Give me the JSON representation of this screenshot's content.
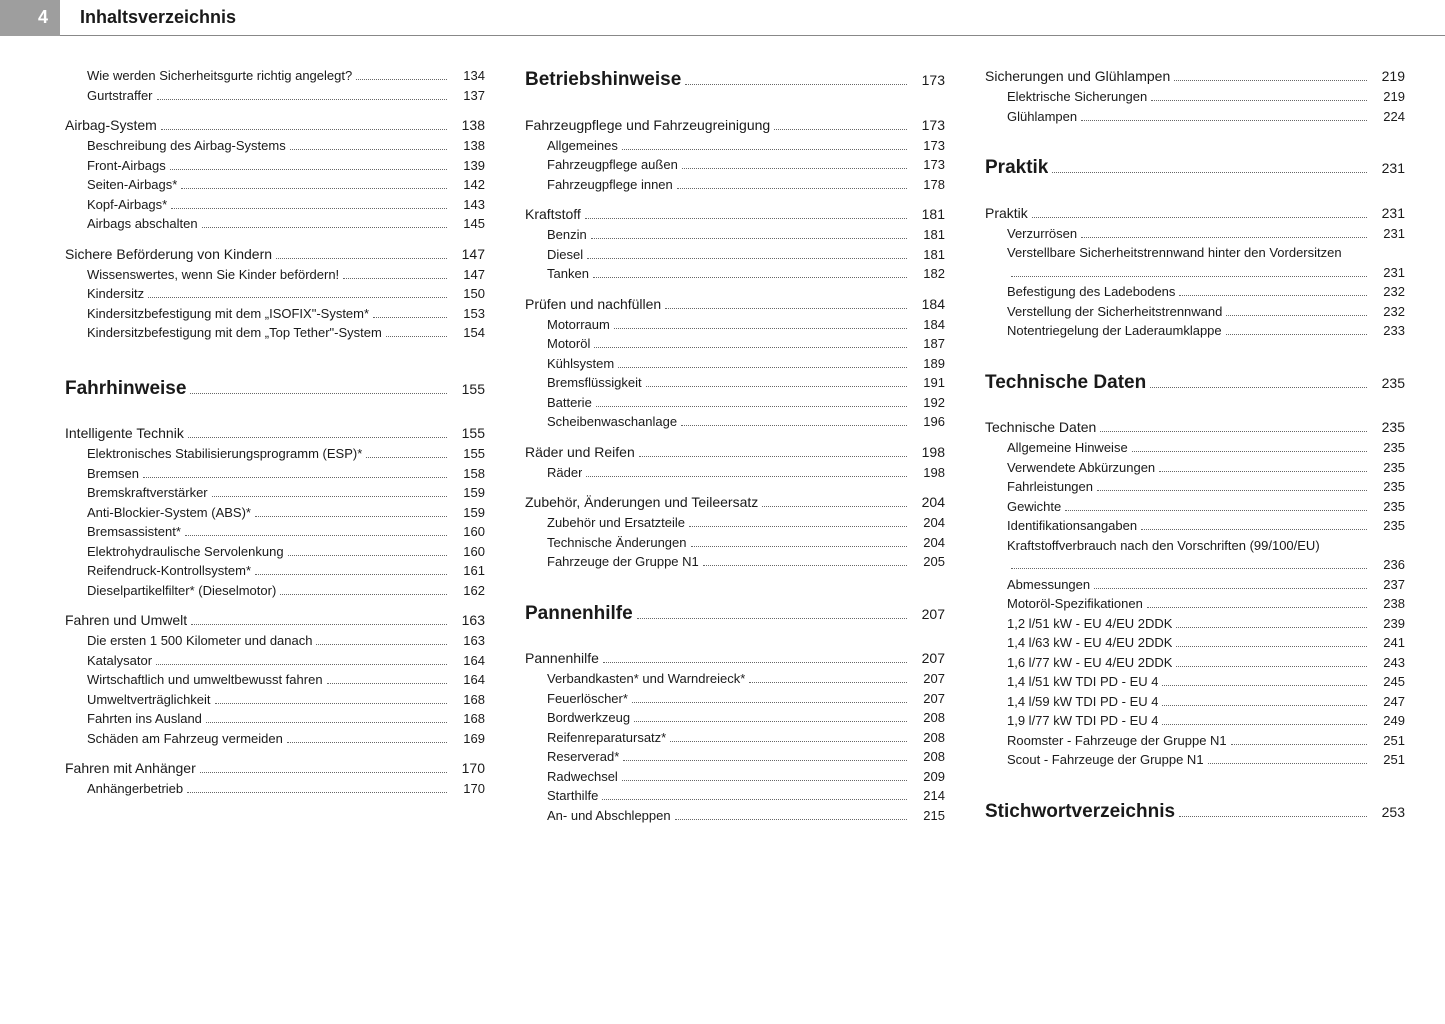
{
  "page_number": "4",
  "header_title": "Inhaltsverzeichnis",
  "columns": [
    [
      {
        "label": "Wie werden Sicherheitsgurte richtig angelegt?",
        "page": "134",
        "indent": 1,
        "level": "item"
      },
      {
        "label": "Gurtstraffer",
        "page": "137",
        "indent": 1,
        "level": "item"
      },
      {
        "label": "Airbag-System",
        "page": "138",
        "indent": 0,
        "level": "section"
      },
      {
        "label": "Beschreibung des Airbag-Systems",
        "page": "138",
        "indent": 1,
        "level": "item"
      },
      {
        "label": "Front-Airbags",
        "page": "139",
        "indent": 1,
        "level": "item"
      },
      {
        "label": "Seiten-Airbags*",
        "page": "142",
        "indent": 1,
        "level": "item"
      },
      {
        "label": "Kopf-Airbags*",
        "page": "143",
        "indent": 1,
        "level": "item"
      },
      {
        "label": "Airbags abschalten",
        "page": "145",
        "indent": 1,
        "level": "item"
      },
      {
        "label": "Sichere Beförderung von Kindern",
        "page": "147",
        "indent": 0,
        "level": "section"
      },
      {
        "label": "Wissenswertes, wenn Sie Kinder befördern!",
        "page": "147",
        "indent": 1,
        "level": "item"
      },
      {
        "label": "Kindersitz",
        "page": "150",
        "indent": 1,
        "level": "item"
      },
      {
        "label": "Kindersitzbefestigung mit dem „ISOFIX\"-System*",
        "page": "153",
        "indent": 1,
        "level": "item"
      },
      {
        "label": "Kindersitzbefestigung mit dem „Top Tether\"-System",
        "page": "154",
        "indent": 1,
        "level": "item"
      },
      {
        "label": "Fahrhinweise",
        "page": "155",
        "indent": 0,
        "level": "heading"
      },
      {
        "label": "Intelligente Technik",
        "page": "155",
        "indent": 0,
        "level": "section"
      },
      {
        "label": "Elektronisches Stabilisierungsprogramm (ESP)*",
        "page": "155",
        "indent": 1,
        "level": "item"
      },
      {
        "label": "Bremsen",
        "page": "158",
        "indent": 1,
        "level": "item"
      },
      {
        "label": "Bremskraftverstärker",
        "page": "159",
        "indent": 1,
        "level": "item"
      },
      {
        "label": "Anti-Blockier-System (ABS)*",
        "page": "159",
        "indent": 1,
        "level": "item"
      },
      {
        "label": "Bremsassistent*",
        "page": "160",
        "indent": 1,
        "level": "item"
      },
      {
        "label": "Elektrohydraulische Servolenkung",
        "page": "160",
        "indent": 1,
        "level": "item"
      },
      {
        "label": "Reifendruck-Kontrollsystem*",
        "page": "161",
        "indent": 1,
        "level": "item"
      },
      {
        "label": "Dieselpartikelfilter* (Dieselmotor)",
        "page": "162",
        "indent": 1,
        "level": "item"
      },
      {
        "label": "Fahren und Umwelt",
        "page": "163",
        "indent": 0,
        "level": "section"
      },
      {
        "label": "Die ersten 1 500 Kilometer und danach",
        "page": "163",
        "indent": 1,
        "level": "item"
      },
      {
        "label": "Katalysator",
        "page": "164",
        "indent": 1,
        "level": "item"
      },
      {
        "label": "Wirtschaftlich und umweltbewusst fahren",
        "page": "164",
        "indent": 1,
        "level": "item"
      },
      {
        "label": "Umweltverträglichkeit",
        "page": "168",
        "indent": 1,
        "level": "item"
      },
      {
        "label": "Fahrten ins Ausland",
        "page": "168",
        "indent": 1,
        "level": "item"
      },
      {
        "label": "Schäden am Fahrzeug vermeiden",
        "page": "169",
        "indent": 1,
        "level": "item"
      },
      {
        "label": "Fahren mit Anhänger",
        "page": "170",
        "indent": 0,
        "level": "section"
      },
      {
        "label": "Anhängerbetrieb",
        "page": "170",
        "indent": 1,
        "level": "item"
      }
    ],
    [
      {
        "label": "Betriebshinweise",
        "page": "173",
        "indent": 0,
        "level": "heading"
      },
      {
        "label": "Fahrzeugpflege und Fahrzeugreinigung",
        "page": "173",
        "indent": 0,
        "level": "section"
      },
      {
        "label": "Allgemeines",
        "page": "173",
        "indent": 1,
        "level": "item"
      },
      {
        "label": "Fahrzeugpflege außen",
        "page": "173",
        "indent": 1,
        "level": "item"
      },
      {
        "label": "Fahrzeugpflege innen",
        "page": "178",
        "indent": 1,
        "level": "item"
      },
      {
        "label": "Kraftstoff",
        "page": "181",
        "indent": 0,
        "level": "section"
      },
      {
        "label": "Benzin",
        "page": "181",
        "indent": 1,
        "level": "item"
      },
      {
        "label": "Diesel",
        "page": "181",
        "indent": 1,
        "level": "item"
      },
      {
        "label": "Tanken",
        "page": "182",
        "indent": 1,
        "level": "item"
      },
      {
        "label": "Prüfen und nachfüllen",
        "page": "184",
        "indent": 0,
        "level": "section"
      },
      {
        "label": "Motorraum",
        "page": "184",
        "indent": 1,
        "level": "item"
      },
      {
        "label": "Motoröl",
        "page": "187",
        "indent": 1,
        "level": "item"
      },
      {
        "label": "Kühlsystem",
        "page": "189",
        "indent": 1,
        "level": "item"
      },
      {
        "label": "Bremsflüssigkeit",
        "page": "191",
        "indent": 1,
        "level": "item"
      },
      {
        "label": "Batterie",
        "page": "192",
        "indent": 1,
        "level": "item"
      },
      {
        "label": "Scheibenwaschanlage",
        "page": "196",
        "indent": 1,
        "level": "item"
      },
      {
        "label": "Räder und Reifen",
        "page": "198",
        "indent": 0,
        "level": "section"
      },
      {
        "label": "Räder",
        "page": "198",
        "indent": 1,
        "level": "item"
      },
      {
        "label": "Zubehör, Änderungen und Teileersatz",
        "page": "204",
        "indent": 0,
        "level": "section"
      },
      {
        "label": "Zubehör und Ersatzteile",
        "page": "204",
        "indent": 1,
        "level": "item"
      },
      {
        "label": "Technische Änderungen",
        "page": "204",
        "indent": 1,
        "level": "item"
      },
      {
        "label": "Fahrzeuge der Gruppe N1",
        "page": "205",
        "indent": 1,
        "level": "item"
      },
      {
        "label": "Pannenhilfe",
        "page": "207",
        "indent": 0,
        "level": "heading"
      },
      {
        "label": "Pannenhilfe",
        "page": "207",
        "indent": 0,
        "level": "section"
      },
      {
        "label": "Verbandkasten* und Warndreieck*",
        "page": "207",
        "indent": 1,
        "level": "item"
      },
      {
        "label": "Feuerlöscher*",
        "page": "207",
        "indent": 1,
        "level": "item"
      },
      {
        "label": "Bordwerkzeug",
        "page": "208",
        "indent": 1,
        "level": "item"
      },
      {
        "label": "Reifenreparatursatz*",
        "page": "208",
        "indent": 1,
        "level": "item"
      },
      {
        "label": "Reserverad*",
        "page": "208",
        "indent": 1,
        "level": "item"
      },
      {
        "label": "Radwechsel",
        "page": "209",
        "indent": 1,
        "level": "item"
      },
      {
        "label": "Starthilfe",
        "page": "214",
        "indent": 1,
        "level": "item"
      },
      {
        "label": "An- und Abschleppen",
        "page": "215",
        "indent": 1,
        "level": "item"
      }
    ],
    [
      {
        "label": "Sicherungen und Glühlampen",
        "page": "219",
        "indent": 0,
        "level": "section",
        "notop": true
      },
      {
        "label": "Elektrische Sicherungen",
        "page": "219",
        "indent": 1,
        "level": "item"
      },
      {
        "label": "Glühlampen",
        "page": "224",
        "indent": 1,
        "level": "item"
      },
      {
        "label": "Praktik",
        "page": "231",
        "indent": 0,
        "level": "heading"
      },
      {
        "label": "Praktik",
        "page": "231",
        "indent": 0,
        "level": "section"
      },
      {
        "label": "Verzurrösen",
        "page": "231",
        "indent": 1,
        "level": "item"
      },
      {
        "label": "Verstellbare Sicherheitstrennwand hinter den Vordersitzen",
        "page": "231",
        "indent": 1,
        "level": "item",
        "wrap": true
      },
      {
        "label": "Befestigung des Ladebodens",
        "page": "232",
        "indent": 1,
        "level": "item"
      },
      {
        "label": "Verstellung der Sicherheitstrennwand",
        "page": "232",
        "indent": 1,
        "level": "item"
      },
      {
        "label": "Notentriegelung der Laderaumklappe",
        "page": "233",
        "indent": 1,
        "level": "item"
      },
      {
        "label": "Technische Daten",
        "page": "235",
        "indent": 0,
        "level": "heading"
      },
      {
        "label": "Technische Daten",
        "page": "235",
        "indent": 0,
        "level": "section"
      },
      {
        "label": "Allgemeine Hinweise",
        "page": "235",
        "indent": 1,
        "level": "item"
      },
      {
        "label": "Verwendete Abkürzungen",
        "page": "235",
        "indent": 1,
        "level": "item"
      },
      {
        "label": "Fahrleistungen",
        "page": "235",
        "indent": 1,
        "level": "item"
      },
      {
        "label": "Gewichte",
        "page": "235",
        "indent": 1,
        "level": "item"
      },
      {
        "label": "Identifikationsangaben",
        "page": "235",
        "indent": 1,
        "level": "item"
      },
      {
        "label": "Kraftstoffverbrauch nach den Vorschriften (99/100/EU)",
        "page": "236",
        "indent": 1,
        "level": "item",
        "wrap": true
      },
      {
        "label": "Abmessungen",
        "page": "237",
        "indent": 1,
        "level": "item"
      },
      {
        "label": "Motoröl-Spezifikationen",
        "page": "238",
        "indent": 1,
        "level": "item"
      },
      {
        "label": "1,2 l/51 kW - EU 4/EU 2DDK",
        "page": "239",
        "indent": 1,
        "level": "item"
      },
      {
        "label": "1,4 l/63 kW - EU 4/EU 2DDK",
        "page": "241",
        "indent": 1,
        "level": "item"
      },
      {
        "label": "1,6 l/77 kW - EU 4/EU 2DDK",
        "page": "243",
        "indent": 1,
        "level": "item"
      },
      {
        "label": "1,4 l/51 kW TDI PD - EU 4",
        "page": "245",
        "indent": 1,
        "level": "item"
      },
      {
        "label": "1,4 l/59 kW TDI PD - EU 4",
        "page": "247",
        "indent": 1,
        "level": "item"
      },
      {
        "label": "1,9 l/77 kW TDI PD - EU 4",
        "page": "249",
        "indent": 1,
        "level": "item"
      },
      {
        "label": "Roomster - Fahrzeuge der Gruppe N1",
        "page": "251",
        "indent": 1,
        "level": "item"
      },
      {
        "label": "Scout - Fahrzeuge der Gruppe N1",
        "page": "251",
        "indent": 1,
        "level": "item"
      },
      {
        "label": "Stichwortverzeichnis",
        "page": "253",
        "indent": 0,
        "level": "heading"
      }
    ]
  ]
}
